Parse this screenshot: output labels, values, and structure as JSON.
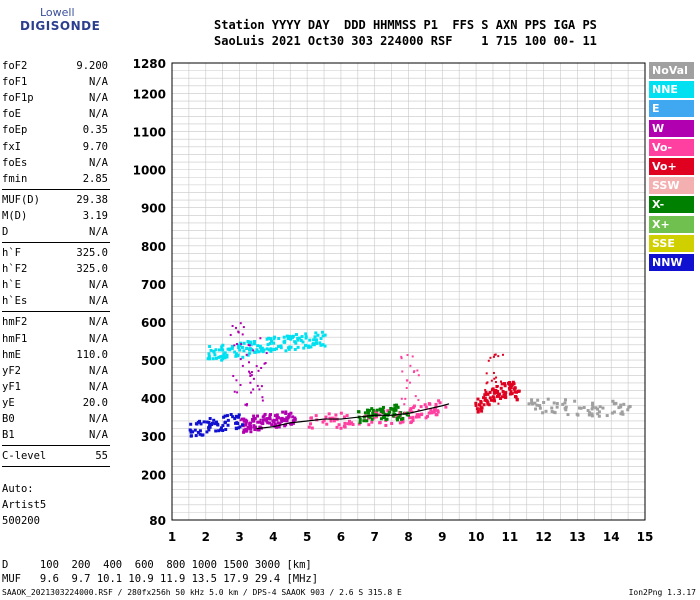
{
  "logo": {
    "line1": "Lowell",
    "line2": "DIGISONDE"
  },
  "header": {
    "line1": "Station YYYY DAY  DDD HHMMSS P1  FFS S AXN PPS IGA PS",
    "line2": "SaoLuis 2021 Oct30 303 224000 RSF    1 715 100 00- 11"
  },
  "params": [
    {
      "label": "foF2",
      "value": "9.200"
    },
    {
      "label": "foF1",
      "value": "N/A"
    },
    {
      "label": "foF1p",
      "value": "N/A"
    },
    {
      "label": "foE",
      "value": "N/A"
    },
    {
      "label": "foEp",
      "value": "0.35"
    },
    {
      "label": "fxI",
      "value": "9.70"
    },
    {
      "label": "foEs",
      "value": "N/A"
    },
    {
      "label": "fmin",
      "value": "2.85"
    },
    {
      "sep": true
    },
    {
      "label": "MUF(D)",
      "value": "29.38"
    },
    {
      "label": "M(D)",
      "value": "3.19"
    },
    {
      "label": "D",
      "value": "N/A"
    },
    {
      "sep": true
    },
    {
      "label": "h`F",
      "value": "325.0"
    },
    {
      "label": "h`F2",
      "value": "325.0"
    },
    {
      "label": "h`E",
      "value": "N/A"
    },
    {
      "label": "h`Es",
      "value": "N/A"
    },
    {
      "sep": true
    },
    {
      "label": "hmF2",
      "value": "N/A"
    },
    {
      "label": "hmF1",
      "value": "N/A"
    },
    {
      "label": "hmE",
      "value": "110.0"
    },
    {
      "label": "yF2",
      "value": "N/A"
    },
    {
      "label": "yF1",
      "value": "N/A"
    },
    {
      "label": "yE",
      "value": "20.0"
    },
    {
      "label": "B0",
      "value": "N/A"
    },
    {
      "label": "B1",
      "value": "N/A"
    },
    {
      "sep": true
    },
    {
      "label": "C-level",
      "value": "55"
    },
    {
      "sep": true
    }
  ],
  "auto": {
    "line1": "Auto:",
    "line2": "Artist5",
    "line3": "500200"
  },
  "legend": [
    {
      "label": "NoVal",
      "color": "#a0a0a0"
    },
    {
      "label": "NNE",
      "color": "#00e0f0"
    },
    {
      "label": "E",
      "color": "#40a8f0"
    },
    {
      "label": "W",
      "color": "#b000b0"
    },
    {
      "label": "Vo-",
      "color": "#ff40a0"
    },
    {
      "label": "Vo+",
      "color": "#e00020"
    },
    {
      "label": "SSW",
      "color": "#f4b0b0"
    },
    {
      "label": "X-",
      "color": "#008000"
    },
    {
      "label": "X+",
      "color": "#70c050"
    },
    {
      "label": "SSE",
      "color": "#d0d000"
    },
    {
      "label": "NNW",
      "color": "#1010d0"
    }
  ],
  "footer": {
    "line1": "D     100  200  400  600  800 1000 1500 3000 [km]",
    "line2": "MUF   9.6  9.7 10.1 10.9 11.9 13.5 17.9 29.4 [MHz]",
    "line3": "SAAOK_2021303224000.RSF / 280fx256h 50 kHz 5.0 km / DPS-4 SAAOK 903 / 2.6 S 315.8 E",
    "version": "Ion2Png 1.3.17"
  },
  "chart_data": {
    "type": "scatter",
    "xlim": [
      1,
      15
    ],
    "ylim": [
      80,
      1280
    ],
    "x_ticks": [
      1,
      2,
      3,
      4,
      5,
      6,
      7,
      8,
      9,
      10,
      11,
      12,
      13,
      14,
      15
    ],
    "y_ticks": [
      80,
      200,
      300,
      400,
      500,
      600,
      700,
      800,
      900,
      1000,
      1100,
      1200,
      1280
    ],
    "grid": true,
    "legend_placement": "right",
    "traces": [
      {
        "color": "#b000b0",
        "x": [
          3.0,
          3.3,
          3.6,
          4.0,
          4.3,
          4.6
        ],
        "y": [
          330,
          335,
          340,
          345,
          350,
          355
        ]
      },
      {
        "color": "#1010d0",
        "x": [
          1.5,
          2.0,
          2.5,
          3.0
        ],
        "y": [
          320,
          330,
          340,
          345
        ]
      },
      {
        "color": "#00e0f0",
        "x": [
          2.0,
          2.5,
          3.0,
          3.5,
          4.0,
          4.5,
          5.0,
          5.5
        ],
        "y": [
          520,
          525,
          530,
          540,
          545,
          550,
          555,
          560
        ]
      },
      {
        "color": "#ff40a0",
        "x": [
          5.0,
          6.0,
          7.0,
          8.0,
          8.5,
          9.0
        ],
        "y": [
          340,
          345,
          350,
          360,
          370,
          380
        ]
      },
      {
        "color": "#e00020",
        "x": [
          10.0,
          10.3,
          10.6,
          11.0,
          11.2
        ],
        "y": [
          380,
          400,
          420,
          430,
          410
        ]
      },
      {
        "color": "#008000",
        "x": [
          6.5,
          7.0,
          7.5,
          8.0
        ],
        "y": [
          355,
          360,
          365,
          370
        ]
      },
      {
        "color": "#a0a0a0",
        "x": [
          11.5,
          12.5,
          13.5,
          14.5
        ],
        "y": [
          385,
          380,
          375,
          380
        ]
      }
    ],
    "trace_line": {
      "color": "#000000",
      "x": [
        3.5,
        4,
        4.5,
        5,
        5.5,
        6,
        6.5,
        7,
        7.5,
        8,
        8.5,
        9,
        9.2
      ],
      "y": [
        320,
        325,
        335,
        340,
        345,
        345,
        350,
        355,
        355,
        360,
        370,
        380,
        385
      ]
    }
  }
}
